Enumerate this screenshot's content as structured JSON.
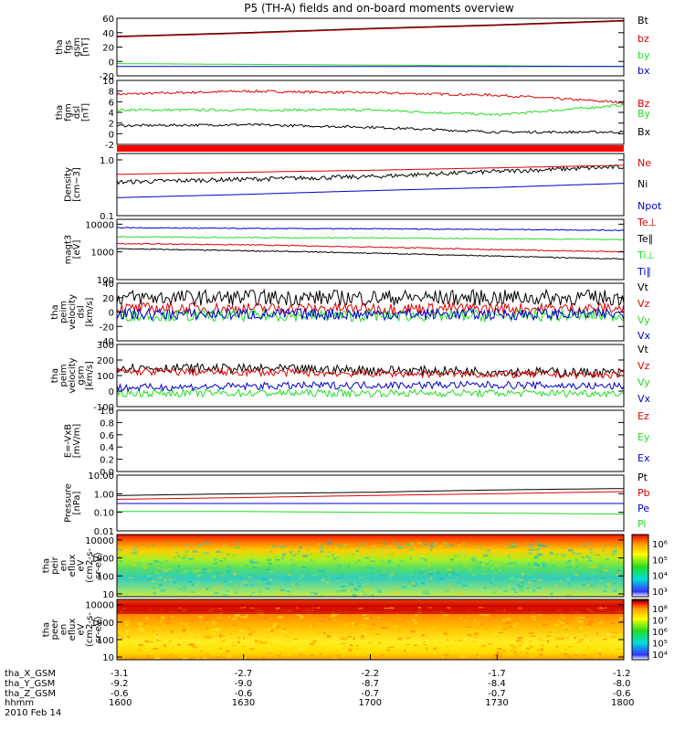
{
  "title": "P5 (TH-A) fields and on-board moments overview",
  "date": "2010 Feb 14",
  "colors": {
    "black": "#000000",
    "red": "#dd0000",
    "green": "#22dd22",
    "blue": "#0000cc",
    "sep": "#ff0000"
  },
  "time_axis": {
    "label": "hhmm",
    "ticks": [
      "1600",
      "1630",
      "1700",
      "1730",
      "1800"
    ]
  },
  "position_rows": [
    {
      "label": "tha_X_GSM",
      "values": [
        "-3.1",
        "-2.7",
        "-2.2",
        "-1.7",
        "-1.2"
      ]
    },
    {
      "label": "tha_Y_GSM",
      "values": [
        "-9.2",
        "-9.0",
        "-8.7",
        "-8.4",
        "-8.0"
      ]
    },
    {
      "label": "tha_Z_GSM",
      "values": [
        "-0.6",
        "-0.6",
        "-0.7",
        "-0.7",
        "-0.6"
      ]
    }
  ],
  "chart_data": [
    {
      "id": "fgs",
      "type": "line",
      "ylabel": [
        "tha",
        "fgs",
        "gsm",
        "[nT]"
      ],
      "yticks": [
        "60",
        "40",
        "20",
        "0",
        "-20"
      ],
      "ylim": [
        -20,
        60
      ],
      "series": [
        {
          "name": "Bt",
          "color": "black",
          "values": [
            35,
            40,
            46,
            51,
            57
          ]
        },
        {
          "name": "bz",
          "color": "red",
          "values": [
            34,
            39,
            45,
            50,
            56
          ]
        },
        {
          "name": "by",
          "color": "green",
          "values": [
            -3,
            -4,
            -5,
            -6,
            -7
          ]
        },
        {
          "name": "bx",
          "color": "blue",
          "values": [
            -7,
            -7,
            -7,
            -7,
            -7
          ]
        }
      ]
    },
    {
      "id": "fgm",
      "type": "line",
      "ylabel": [
        "tha",
        "fgm",
        "dsl",
        "[nT]"
      ],
      "yticks": [
        "10",
        "8",
        "6",
        "4",
        "2",
        "0",
        "-2"
      ],
      "ylim": [
        -3,
        10
      ],
      "series": [
        {
          "name": "Bz",
          "color": "red",
          "values": [
            7.2,
            7.8,
            7.5,
            7,
            5.5
          ]
        },
        {
          "name": "By",
          "color": "green",
          "values": [
            4,
            4,
            4,
            3,
            5
          ]
        },
        {
          "name": "Bx",
          "color": "black",
          "values": [
            0.8,
            1,
            0.5,
            -0.5,
            -0.5
          ]
        }
      ]
    },
    {
      "id": "density",
      "type": "line",
      "ylabel": [
        "Density",
        "[cm−3]"
      ],
      "yticks": [
        "1.0",
        "0.1"
      ],
      "ylim": [
        0.1,
        1.3
      ],
      "scale": "log",
      "series": [
        {
          "name": "Ne",
          "color": "red",
          "values": [
            0.55,
            0.6,
            0.65,
            0.72,
            0.8
          ]
        },
        {
          "name": "Ni",
          "color": "black",
          "values": [
            0.4,
            0.45,
            0.5,
            0.62,
            0.75
          ]
        },
        {
          "name": "Npot",
          "color": "blue",
          "values": [
            0.21,
            0.24,
            0.28,
            0.32,
            0.38
          ]
        }
      ]
    },
    {
      "id": "temperature",
      "type": "line",
      "ylabel": [
        "magt3",
        "[eV]"
      ],
      "yticks": [
        "10000",
        "1000",
        "100"
      ],
      "ylim": [
        100,
        15000
      ],
      "scale": "log",
      "series": [
        {
          "name": "Te⊥",
          "color": "red",
          "values": [
            2000,
            1800,
            1500,
            1200,
            1000
          ]
        },
        {
          "name": "Te∥",
          "color": "black",
          "values": [
            1300,
            1100,
            900,
            700,
            550
          ]
        },
        {
          "name": "Ti⊥",
          "color": "green",
          "values": [
            3500,
            3300,
            3200,
            3000,
            2800
          ]
        },
        {
          "name": "Ti∥",
          "color": "blue",
          "values": [
            7500,
            7000,
            6800,
            6500,
            6000
          ]
        }
      ]
    },
    {
      "id": "velocity_dsl",
      "type": "line",
      "ylabel": [
        "tha",
        "peim",
        "velocity",
        "dsl",
        "[km/s]"
      ],
      "yticks": [
        "40",
        "20",
        "0",
        "-20",
        "-40"
      ],
      "ylim": [
        -40,
        40
      ],
      "series": [
        {
          "name": "Vt",
          "color": "black",
          "values": [
            20,
            20,
            20,
            20,
            20
          ]
        },
        {
          "name": "Vz",
          "color": "red",
          "values": [
            5,
            5,
            5,
            5,
            5
          ]
        },
        {
          "name": "Vy",
          "color": "green",
          "values": [
            -5,
            -5,
            -5,
            -5,
            -5
          ]
        },
        {
          "name": "Vx",
          "color": "blue",
          "values": [
            -3,
            -3,
            -3,
            -3,
            -3
          ]
        }
      ]
    },
    {
      "id": "velocity_gsm",
      "type": "line",
      "ylabel": [
        "tha",
        "peim",
        "velocity",
        "gsm",
        "[km/s]"
      ],
      "yticks": [
        "300",
        "200",
        "100",
        "0",
        "-100"
      ],
      "ylim": [
        -140,
        320
      ],
      "series": [
        {
          "name": "Vt",
          "color": "black",
          "values": [
            150,
            140,
            130,
            120,
            110
          ]
        },
        {
          "name": "Vz",
          "color": "red",
          "values": [
            120,
            115,
            105,
            100,
            95
          ]
        },
        {
          "name": "Vy",
          "color": "green",
          "values": [
            -40,
            -40,
            -40,
            -40,
            -40
          ]
        },
        {
          "name": "Vx",
          "color": "blue",
          "values": [
            0,
            10,
            20,
            20,
            10
          ]
        }
      ]
    },
    {
      "id": "efield",
      "type": "line",
      "ylabel": [
        "E=-VxB",
        "[mV/m]"
      ],
      "yticks": [
        "1.0",
        "0.8",
        "0.6",
        "0.4",
        "0.2",
        "0.0"
      ],
      "ylim": [
        0,
        1
      ],
      "series": [
        {
          "name": "Ez",
          "color": "red",
          "values": []
        },
        {
          "name": "Ey",
          "color": "green",
          "values": []
        },
        {
          "name": "Ex",
          "color": "blue",
          "values": []
        }
      ]
    },
    {
      "id": "pressure",
      "type": "line",
      "ylabel": [
        "Pressure",
        "[nPa]"
      ],
      "yticks": [
        "10.00",
        "1.00",
        "0.10",
        "0.01"
      ],
      "ylim": [
        0.01,
        10
      ],
      "scale": "log",
      "series": [
        {
          "name": "Pt",
          "color": "black",
          "values": [
            0.8,
            1.0,
            1.2,
            1.6,
            1.9
          ]
        },
        {
          "name": "Pb",
          "color": "red",
          "values": [
            0.5,
            0.62,
            0.8,
            1.0,
            1.3
          ]
        },
        {
          "name": "Pe",
          "color": "blue",
          "values": [
            0.3,
            0.3,
            0.3,
            0.3,
            0.3
          ]
        },
        {
          "name": "Pi",
          "color": "green",
          "values": [
            0.11,
            0.11,
            0.1,
            0.09,
            0.08
          ]
        }
      ]
    },
    {
      "id": "peir_spec",
      "type": "heatmap",
      "ylabel": [
        "tha",
        "peir",
        "en",
        "eflux",
        "eV",
        "(cm2-s-",
        "sr-eV)"
      ],
      "yticks": [
        "10000",
        "1000",
        "100",
        "10"
      ],
      "ylim": [
        7,
        20000
      ],
      "scale": "log",
      "colorbar": {
        "ticks": [
          "10⁶",
          "10⁵",
          "10⁴",
          "10³"
        ]
      }
    },
    {
      "id": "peer_spec",
      "type": "heatmap",
      "ylabel": [
        "tha",
        "peer",
        "en",
        "eflux",
        "eV",
        "(cm2-s-",
        "sr-eV)"
      ],
      "yticks": [
        "10000",
        "1000",
        "100",
        "10"
      ],
      "ylim": [
        7,
        20000
      ],
      "scale": "log",
      "colorbar": {
        "ticks": [
          "10⁸",
          "10⁷",
          "10⁶",
          "10⁵",
          "10⁴"
        ]
      }
    }
  ]
}
